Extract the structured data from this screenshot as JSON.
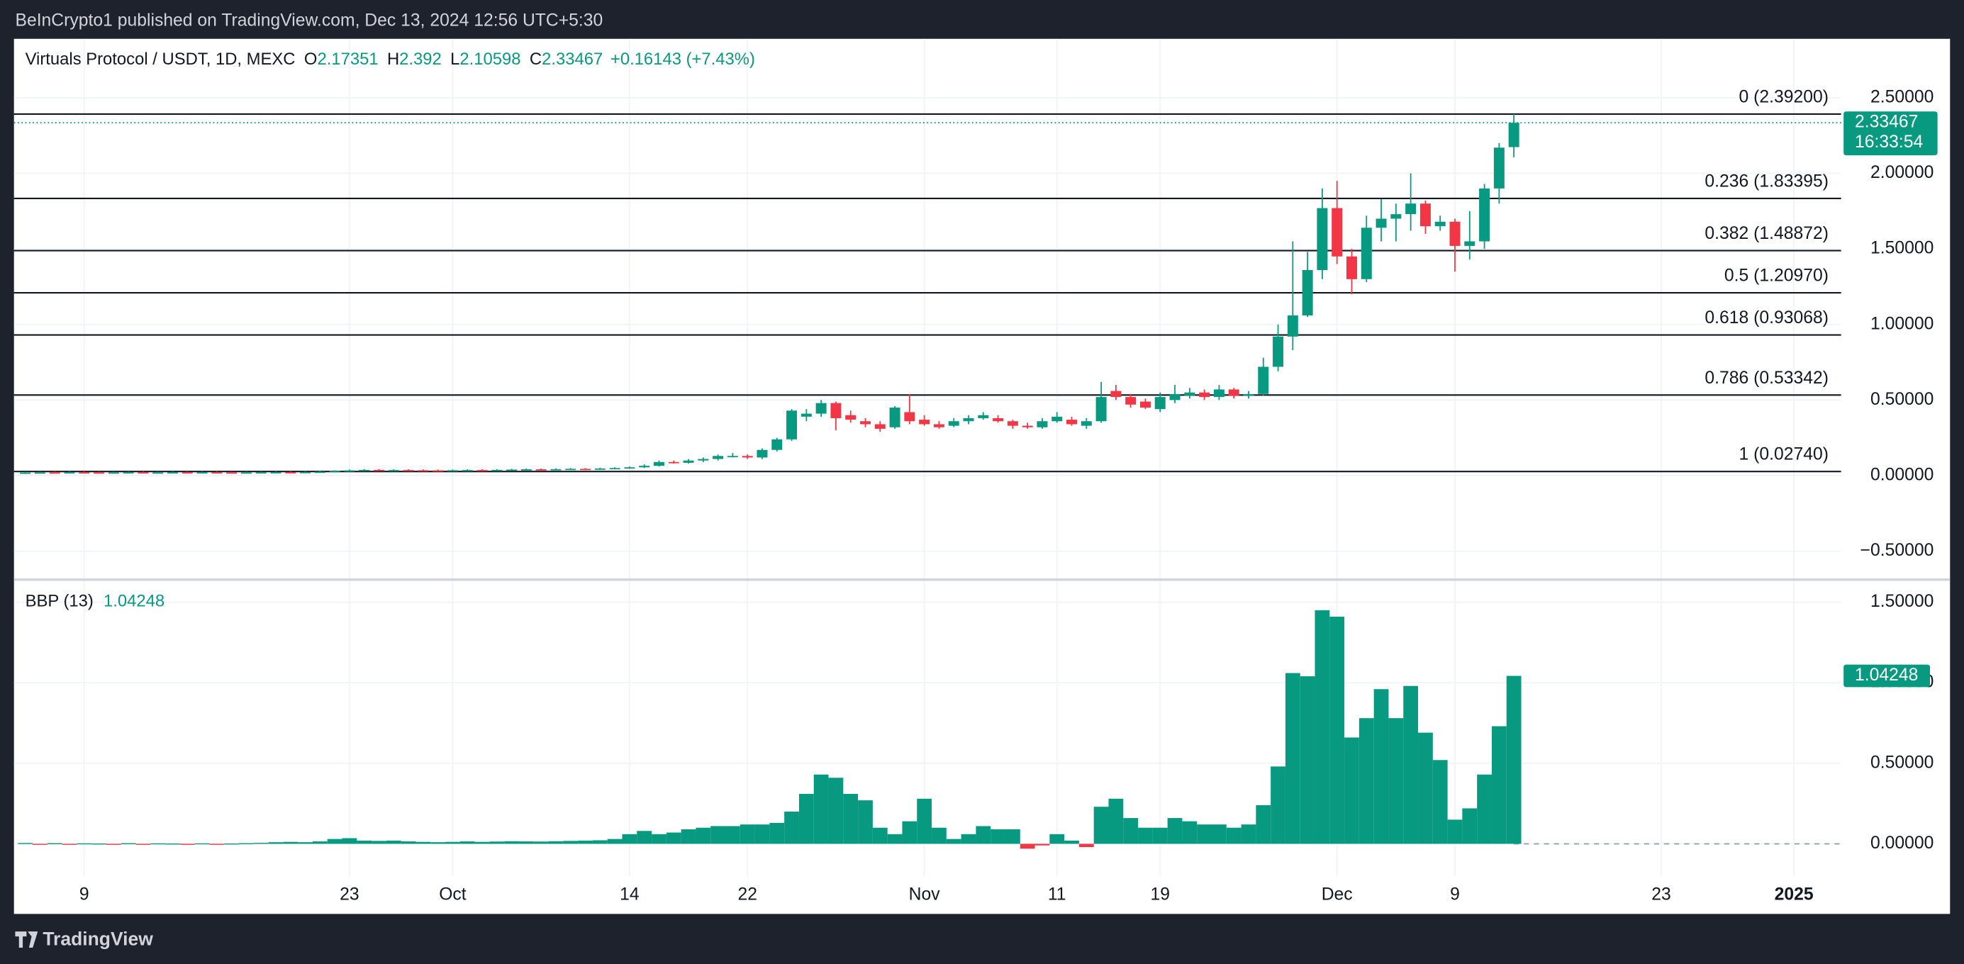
{
  "header": {
    "publisher": "BeInCrypto1 published on TradingView.com, Dec 13, 2024 12:56 UTC+5:30",
    "logo": "TradingView"
  },
  "chart_data": [
    {
      "type": "candlestick",
      "title": "Virtuals Protocol / USDT, 1D, MEXC",
      "ohlc_labels": [
        "O",
        "H",
        "L",
        "C"
      ],
      "change": "+0.16143 (+7.43%)",
      "countdown": "16:33:54",
      "up_color": "#089981",
      "down_color": "#f23645",
      "grid": true,
      "xlim": [
        -0.68,
        123.2
      ],
      "xticks": [
        {
          "value": 4,
          "label": "9"
        },
        {
          "value": 22,
          "label": "23"
        },
        {
          "value": 29,
          "label": "Oct"
        },
        {
          "value": 41,
          "label": "14"
        },
        {
          "value": 49,
          "label": "22"
        },
        {
          "value": 61,
          "label": "Nov"
        },
        {
          "value": 70,
          "label": "11"
        },
        {
          "value": 77,
          "label": "19"
        },
        {
          "value": 89,
          "label": "Dec"
        },
        {
          "value": 97,
          "label": "9"
        },
        {
          "value": 111,
          "label": "23"
        },
        {
          "value": 120,
          "label": "2025"
        }
      ],
      "ylim": [
        -0.68,
        2.89
      ],
      "yticks": [
        {
          "value": -0.5,
          "label": "−0.50000"
        },
        {
          "value": 0,
          "label": "0.00000"
        },
        {
          "value": 0.5,
          "label": "0.50000"
        },
        {
          "value": 1,
          "label": "1.00000"
        },
        {
          "value": 1.5,
          "label": "1.50000"
        },
        {
          "value": 2,
          "label": "2.00000"
        },
        {
          "value": 2.5,
          "label": "2.50000"
        }
      ],
      "fib_levels": [
        {
          "label": "0 (2.39200)",
          "value": 2.392
        },
        {
          "label": "0.236 (1.83395)",
          "value": 1.83395
        },
        {
          "label": "0.382 (1.48872)",
          "value": 1.48872
        },
        {
          "label": "0.5 (1.20970)",
          "value": 1.2097
        },
        {
          "label": "0.618 (0.93068)",
          "value": 0.93068
        },
        {
          "label": "0.786 (0.53342)",
          "value": 0.53342
        },
        {
          "label": "1 (0.02740)",
          "value": 0.0274
        }
      ],
      "open": [
        0.019,
        0.02,
        0.021,
        0.02,
        0.022,
        0.021,
        0.02,
        0.021,
        0.022,
        0.02,
        0.021,
        0.022,
        0.021,
        0.022,
        0.021,
        0.02,
        0.021,
        0.022,
        0.023,
        0.022,
        0.024,
        0.026,
        0.03,
        0.035,
        0.038,
        0.036,
        0.037,
        0.036,
        0.035,
        0.034,
        0.036,
        0.037,
        0.036,
        0.038,
        0.04,
        0.042,
        0.041,
        0.043,
        0.045,
        0.044,
        0.047,
        0.05,
        0.055,
        0.065,
        0.09,
        0.085,
        0.1,
        0.11,
        0.13,
        0.13,
        0.12,
        0.17,
        0.24,
        0.39,
        0.41,
        0.48,
        0.4,
        0.36,
        0.34,
        0.32,
        0.42,
        0.37,
        0.34,
        0.33,
        0.36,
        0.38,
        0.38,
        0.36,
        0.33,
        0.32,
        0.36,
        0.37,
        0.33,
        0.36,
        0.56,
        0.52,
        0.49,
        0.44,
        0.5,
        0.53,
        0.55,
        0.52,
        0.57,
        0.53,
        0.54,
        0.72,
        0.92,
        1.06,
        1.36,
        1.77,
        1.45,
        1.3,
        1.64,
        1.7,
        1.73,
        1.8,
        1.65,
        1.68,
        1.52,
        1.55,
        1.9,
        2.17351
      ],
      "high": [
        0.025,
        0.026,
        0.026,
        0.027,
        0.027,
        0.026,
        0.026,
        0.027,
        0.027,
        0.026,
        0.027,
        0.027,
        0.027,
        0.027,
        0.026,
        0.026,
        0.027,
        0.028,
        0.028,
        0.029,
        0.031,
        0.035,
        0.04,
        0.043,
        0.043,
        0.042,
        0.042,
        0.041,
        0.04,
        0.041,
        0.042,
        0.042,
        0.043,
        0.045,
        0.047,
        0.047,
        0.048,
        0.05,
        0.05,
        0.052,
        0.055,
        0.06,
        0.075,
        0.1,
        0.1,
        0.11,
        0.12,
        0.14,
        0.15,
        0.14,
        0.18,
        0.25,
        0.44,
        0.44,
        0.5,
        0.49,
        0.43,
        0.38,
        0.36,
        0.46,
        0.54,
        0.4,
        0.36,
        0.38,
        0.4,
        0.42,
        0.4,
        0.37,
        0.35,
        0.38,
        0.42,
        0.39,
        0.38,
        0.62,
        0.6,
        0.54,
        0.51,
        0.55,
        0.6,
        0.58,
        0.57,
        0.6,
        0.58,
        0.56,
        0.78,
        1.0,
        1.55,
        1.48,
        1.9,
        1.95,
        1.5,
        1.72,
        1.83,
        1.8,
        2.0,
        1.82,
        1.72,
        1.7,
        1.75,
        1.93,
        2.2,
        2.392
      ],
      "low": [
        0.014,
        0.015,
        0.015,
        0.015,
        0.016,
        0.015,
        0.015,
        0.016,
        0.015,
        0.015,
        0.016,
        0.016,
        0.016,
        0.016,
        0.015,
        0.015,
        0.016,
        0.017,
        0.017,
        0.017,
        0.019,
        0.021,
        0.025,
        0.03,
        0.031,
        0.031,
        0.031,
        0.03,
        0.029,
        0.029,
        0.031,
        0.031,
        0.031,
        0.033,
        0.035,
        0.036,
        0.036,
        0.038,
        0.039,
        0.039,
        0.042,
        0.045,
        0.05,
        0.06,
        0.08,
        0.08,
        0.09,
        0.1,
        0.12,
        0.11,
        0.11,
        0.16,
        0.23,
        0.36,
        0.39,
        0.3,
        0.35,
        0.32,
        0.29,
        0.31,
        0.34,
        0.33,
        0.31,
        0.32,
        0.34,
        0.37,
        0.35,
        0.31,
        0.31,
        0.31,
        0.35,
        0.33,
        0.31,
        0.35,
        0.5,
        0.45,
        0.44,
        0.42,
        0.48,
        0.51,
        0.5,
        0.5,
        0.51,
        0.51,
        0.53,
        0.69,
        0.83,
        1.05,
        1.3,
        1.4,
        1.2,
        1.28,
        1.55,
        1.55,
        1.62,
        1.6,
        1.62,
        1.35,
        1.43,
        1.5,
        1.8,
        2.10598
      ],
      "close": [
        0.02,
        0.021,
        0.02,
        0.022,
        0.021,
        0.02,
        0.021,
        0.022,
        0.02,
        0.021,
        0.022,
        0.021,
        0.022,
        0.021,
        0.02,
        0.021,
        0.022,
        0.023,
        0.022,
        0.024,
        0.026,
        0.03,
        0.035,
        0.038,
        0.036,
        0.037,
        0.036,
        0.035,
        0.034,
        0.036,
        0.037,
        0.036,
        0.038,
        0.04,
        0.042,
        0.041,
        0.043,
        0.045,
        0.044,
        0.047,
        0.05,
        0.055,
        0.065,
        0.09,
        0.085,
        0.1,
        0.11,
        0.13,
        0.13,
        0.12,
        0.17,
        0.24,
        0.43,
        0.41,
        0.48,
        0.38,
        0.37,
        0.34,
        0.31,
        0.45,
        0.36,
        0.34,
        0.32,
        0.36,
        0.38,
        0.4,
        0.36,
        0.33,
        0.32,
        0.36,
        0.39,
        0.34,
        0.36,
        0.52,
        0.52,
        0.47,
        0.45,
        0.52,
        0.54,
        0.55,
        0.52,
        0.57,
        0.53,
        0.54,
        0.72,
        0.92,
        1.06,
        1.36,
        1.77,
        1.45,
        1.3,
        1.64,
        1.7,
        1.73,
        1.8,
        1.65,
        1.68,
        1.52,
        1.55,
        1.9,
        2.17,
        2.33467
      ]
    },
    {
      "type": "bar",
      "title": "BBP (13)",
      "positive_color": "#089981",
      "negative_color": "#f23645",
      "ylim": [
        -0.202,
        1.632
      ],
      "yticks": [
        {
          "value": 0,
          "label": "0.00000"
        },
        {
          "value": 0.5,
          "label": "0.50000"
        },
        {
          "value": 1,
          "label": "1.00000"
        },
        {
          "value": 1.5,
          "label": "1.50000"
        }
      ],
      "values": [
        0.005,
        -0.003,
        0.004,
        -0.002,
        0.003,
        0.002,
        -0.003,
        0.004,
        -0.004,
        0.003,
        0.002,
        -0.002,
        0.003,
        -0.003,
        0.002,
        0.004,
        0.006,
        0.01,
        0.012,
        0.01,
        0.015,
        0.03,
        0.035,
        0.02,
        0.018,
        0.02,
        0.015,
        0.012,
        0.01,
        0.012,
        0.015,
        0.012,
        0.014,
        0.016,
        0.015,
        0.014,
        0.016,
        0.018,
        0.02,
        0.022,
        0.03,
        0.06,
        0.08,
        0.06,
        0.07,
        0.09,
        0.1,
        0.11,
        0.11,
        0.12,
        0.12,
        0.13,
        0.2,
        0.31,
        0.43,
        0.41,
        0.31,
        0.27,
        0.1,
        0.06,
        0.14,
        0.28,
        0.1,
        0.03,
        0.06,
        0.11,
        0.09,
        0.09,
        -0.03,
        -0.01,
        0.06,
        0.02,
        -0.02,
        0.23,
        0.28,
        0.16,
        0.1,
        0.1,
        0.16,
        0.14,
        0.12,
        0.12,
        0.1,
        0.12,
        0.24,
        0.48,
        1.06,
        1.04,
        1.45,
        1.41,
        0.66,
        0.78,
        0.96,
        0.78,
        0.98,
        0.69,
        0.52,
        0.15,
        0.22,
        0.43,
        0.73,
        1.04248
      ]
    }
  ]
}
